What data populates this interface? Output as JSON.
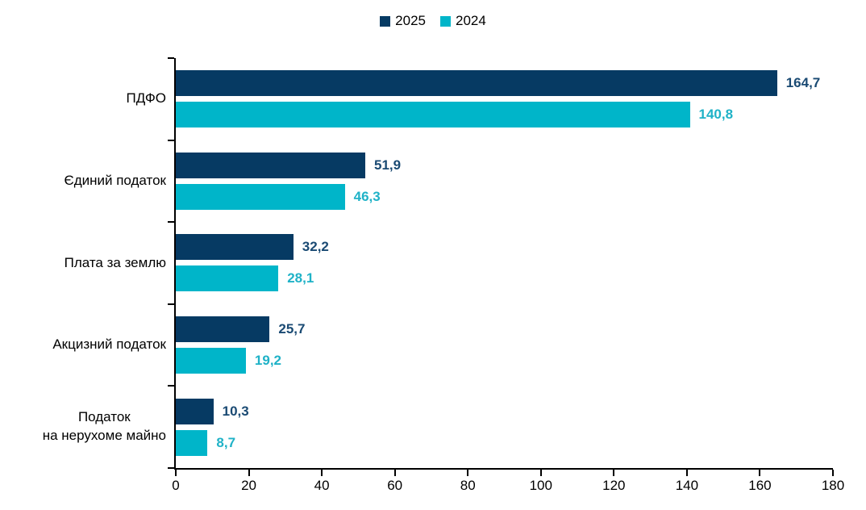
{
  "chart_data": {
    "type": "bar",
    "orientation": "horizontal",
    "title": "",
    "xlabel": "",
    "ylabel": "",
    "categories": [
      "ПДФО",
      "Єдиний податок",
      "Плата за землю",
      "Акцизний податок",
      "Податок\nна нерухоме майно"
    ],
    "series": [
      {
        "name": "2025",
        "color": "#063a63",
        "label_color": "#1a4a73",
        "values": [
          164.7,
          51.9,
          32.2,
          25.7,
          10.3
        ],
        "value_labels": [
          "164,7",
          "51,9",
          "32,2",
          "25,7",
          "10,3"
        ]
      },
      {
        "name": "2024",
        "color": "#00b5c9",
        "label_color": "#1fb2c7",
        "values": [
          140.8,
          46.3,
          28.1,
          19.2,
          8.7
        ],
        "value_labels": [
          "140,8",
          "46,3",
          "28,1",
          "19,2",
          "8,7"
        ]
      }
    ],
    "xlim": [
      0,
      180
    ],
    "x_ticks": [
      0,
      20,
      40,
      60,
      80,
      100,
      120,
      140,
      160,
      180
    ],
    "legend_position": "top-center",
    "grid": false,
    "axis_color": "#000000",
    "decimal_separator": ","
  }
}
